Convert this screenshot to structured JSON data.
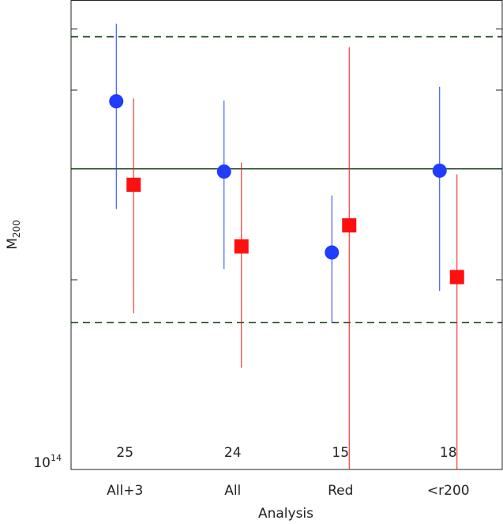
{
  "chart_data": {
    "type": "errorpoints",
    "xlabel": "Analysis",
    "ylabel": "M",
    "ylabel_subscript": "200",
    "categories": [
      "All+3",
      "All",
      "Red",
      "<r200"
    ],
    "annotations": [
      "25",
      "24",
      "15",
      "18"
    ],
    "log_y": true,
    "ylim": [
      100000000000000.0,
      556000000000000.0
    ],
    "yticks": [
      {
        "value": 100000000000000.0,
        "label": "10"
      }
    ],
    "ytick_superscripts": [
      "14"
    ],
    "yminorticks": [
      200000000000000.0,
      300000000000000.0,
      400000000000000.0,
      500000000000000.0
    ],
    "hlines": [
      {
        "value": 300000000000000.0,
        "style": "solid",
        "color": "#0a3a0a"
      },
      {
        "value": 486000000000000.0,
        "style": "dashed",
        "color": "#0a3a0a"
      },
      {
        "value": 171000000000000.0,
        "style": "dashed",
        "color": "#0a3a0a"
      }
    ],
    "series": [
      {
        "marker": "circle",
        "color": "#1f3cff",
        "values": [
          384000000000000.0,
          297000000000000.0,
          221000000000000.0,
          298000000000000.0
        ],
        "lower": [
          259000000000000.0,
          208000000000000.0,
          171000000000000.0,
          192000000000000.0
        ],
        "upper": [
          510000000000000.0,
          385000000000000.0,
          272000000000000.0,
          405000000000000.0
        ]
      },
      {
        "marker": "square",
        "color": "#ff1010",
        "values": [
          283000000000000.0,
          226000000000000.0,
          244000000000000.0,
          202000000000000.0
        ],
        "lower": [
          177000000000000.0,
          145000000000000.0,
          100000000000000.0,
          100000000000000.0
        ],
        "upper": [
          388000000000000.0,
          307000000000000.0,
          468000000000000.0,
          294000000000000.0
        ]
      }
    ]
  }
}
